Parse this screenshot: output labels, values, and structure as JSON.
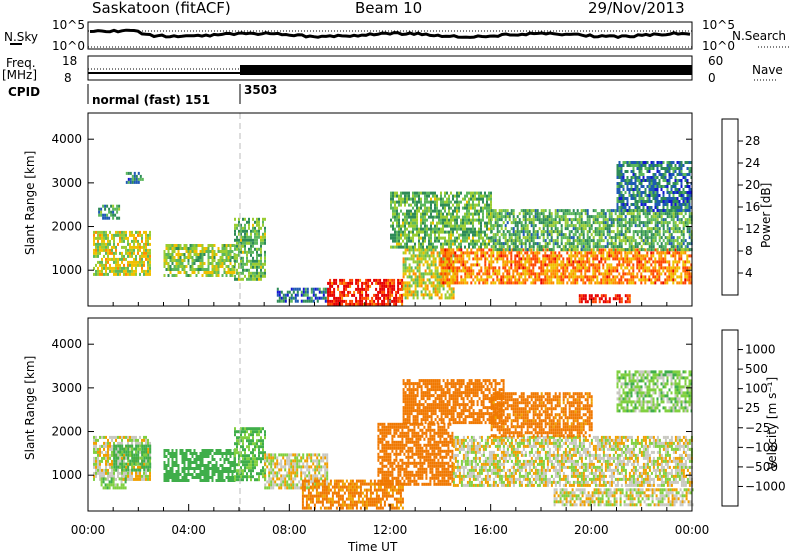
{
  "header": {
    "station": "Saskatoon (fitACF)",
    "beam": "Beam 10",
    "date": "29/Nov/2013"
  },
  "top_panels": {
    "nsky_label": "N.Sky",
    "nsky_ticks": [
      "10^5",
      "10^0"
    ],
    "nsearch_label": "N.Search",
    "nsearch_ticks": [
      "10^5",
      "10^0"
    ],
    "freq_label_1": "Freq.",
    "freq_label_2": "[MHz]",
    "freq_ticks": [
      "18",
      "8"
    ],
    "nave_label": "Nave",
    "nave_ticks": [
      "60",
      "0"
    ],
    "cpid_label": "CPID",
    "cpid_segments": [
      {
        "label": "normal (fast) 151",
        "start_hour": 0,
        "end_hour": 6
      },
      {
        "label": "3503",
        "start_hour": 6,
        "end_hour": 24
      }
    ]
  },
  "colors": {
    "power_scale": [
      "#1414d2",
      "#1e5ab4",
      "#2e8b57",
      "#5cb85c",
      "#9acd32",
      "#f0c000",
      "#ff8c00",
      "#ff4500",
      "#e60000"
    ],
    "velocity_scale": [
      "#1e50c8",
      "#2e7d5a",
      "#3fae4a",
      "#80d040",
      "#c8c8c0",
      "#c8c8c0",
      "#f0a000",
      "#f07800",
      "#e84010",
      "#e00000"
    ]
  },
  "chart_data": [
    {
      "type": "heatmap",
      "panel": "power",
      "ylabel": "Slant Range [km]",
      "xlabel": "Time UT",
      "xlim": [
        "00:00",
        "00:00"
      ],
      "x_ticks": [
        "00:00",
        "04:00",
        "08:00",
        "12:00",
        "16:00",
        "20:00",
        "00:00"
      ],
      "ylim": [
        180,
        4600
      ],
      "y_ticks": [
        1000,
        2000,
        3000,
        4000
      ],
      "colorbar_label": "Power [dB]",
      "colorbar_ticks": [
        4,
        8,
        12,
        16,
        20,
        24,
        28
      ],
      "colorbar_range": [
        0,
        30
      ],
      "regions": [
        {
          "t": [
            0.2,
            2.5
          ],
          "r": [
            900,
            1900
          ],
          "value": 16
        },
        {
          "t": [
            0.4,
            1.2
          ],
          "r": [
            2200,
            2500
          ],
          "value": 10
        },
        {
          "t": [
            1.5,
            2.2
          ],
          "r": [
            3000,
            3250
          ],
          "value": 8
        },
        {
          "t": [
            3.0,
            5.8
          ],
          "r": [
            900,
            1600
          ],
          "value": 14
        },
        {
          "t": [
            5.8,
            7.0
          ],
          "r": [
            800,
            2200
          ],
          "value": 12
        },
        {
          "t": [
            7.5,
            9.5
          ],
          "r": [
            300,
            600
          ],
          "value": 6
        },
        {
          "t": [
            9.5,
            12.5
          ],
          "r": [
            250,
            800
          ],
          "value": 27
        },
        {
          "t": [
            12.5,
            14.5
          ],
          "r": [
            400,
            1500
          ],
          "value": 16
        },
        {
          "t": [
            12.0,
            16.0
          ],
          "r": [
            1500,
            2800
          ],
          "value": 12
        },
        {
          "t": [
            14.0,
            24.0
          ],
          "r": [
            700,
            1500
          ],
          "value": 22
        },
        {
          "t": [
            16.0,
            24.0
          ],
          "r": [
            1500,
            2400
          ],
          "value": 11
        },
        {
          "t": [
            19.5,
            21.5
          ],
          "r": [
            300,
            450
          ],
          "value": 28
        },
        {
          "t": [
            21.0,
            24.0
          ],
          "r": [
            2400,
            3500
          ],
          "value": 7
        }
      ]
    },
    {
      "type": "heatmap",
      "panel": "velocity",
      "ylabel": "Slant Range [km]",
      "xlabel": "Time UT",
      "xlim": [
        "00:00",
        "00:00"
      ],
      "x_ticks": [
        "00:00",
        "04:00",
        "08:00",
        "12:00",
        "16:00",
        "20:00",
        "00:00"
      ],
      "ylim": [
        180,
        4600
      ],
      "y_ticks": [
        1000,
        2000,
        3000,
        4000
      ],
      "colorbar_label": "Velocity [m s⁻¹]",
      "colorbar_ticks": [
        "1000",
        "500",
        "100",
        "25",
        "−25",
        "−100",
        "−500",
        "−1000"
      ],
      "regions": [
        {
          "t": [
            0.2,
            2.5
          ],
          "r": [
            900,
            1900
          ],
          "value": 0
        },
        {
          "t": [
            1.0,
            2.5
          ],
          "r": [
            1100,
            1700
          ],
          "value": 150
        },
        {
          "t": [
            0.5,
            1.5
          ],
          "r": [
            700,
            950
          ],
          "value": 80
        },
        {
          "t": [
            3.0,
            5.8
          ],
          "r": [
            900,
            1600
          ],
          "value": 200
        },
        {
          "t": [
            5.8,
            7.0
          ],
          "r": [
            900,
            2100
          ],
          "value": 120
        },
        {
          "t": [
            7.0,
            9.5
          ],
          "r": [
            700,
            1500
          ],
          "value": 0
        },
        {
          "t": [
            8.5,
            12.5
          ],
          "r": [
            250,
            900
          ],
          "value": -120
        },
        {
          "t": [
            11.5,
            14.5
          ],
          "r": [
            800,
            2200
          ],
          "value": -300
        },
        {
          "t": [
            12.5,
            16.5
          ],
          "r": [
            2200,
            3200
          ],
          "value": -250
        },
        {
          "t": [
            14.5,
            24.0
          ],
          "r": [
            800,
            1900
          ],
          "value": 0
        },
        {
          "t": [
            16.0,
            20.0
          ],
          "r": [
            1900,
            2900
          ],
          "value": -150
        },
        {
          "t": [
            18.5,
            24.0
          ],
          "r": [
            300,
            700
          ],
          "value": 0
        },
        {
          "t": [
            21.0,
            24.0
          ],
          "r": [
            2500,
            3400
          ],
          "value": 60
        }
      ]
    }
  ]
}
